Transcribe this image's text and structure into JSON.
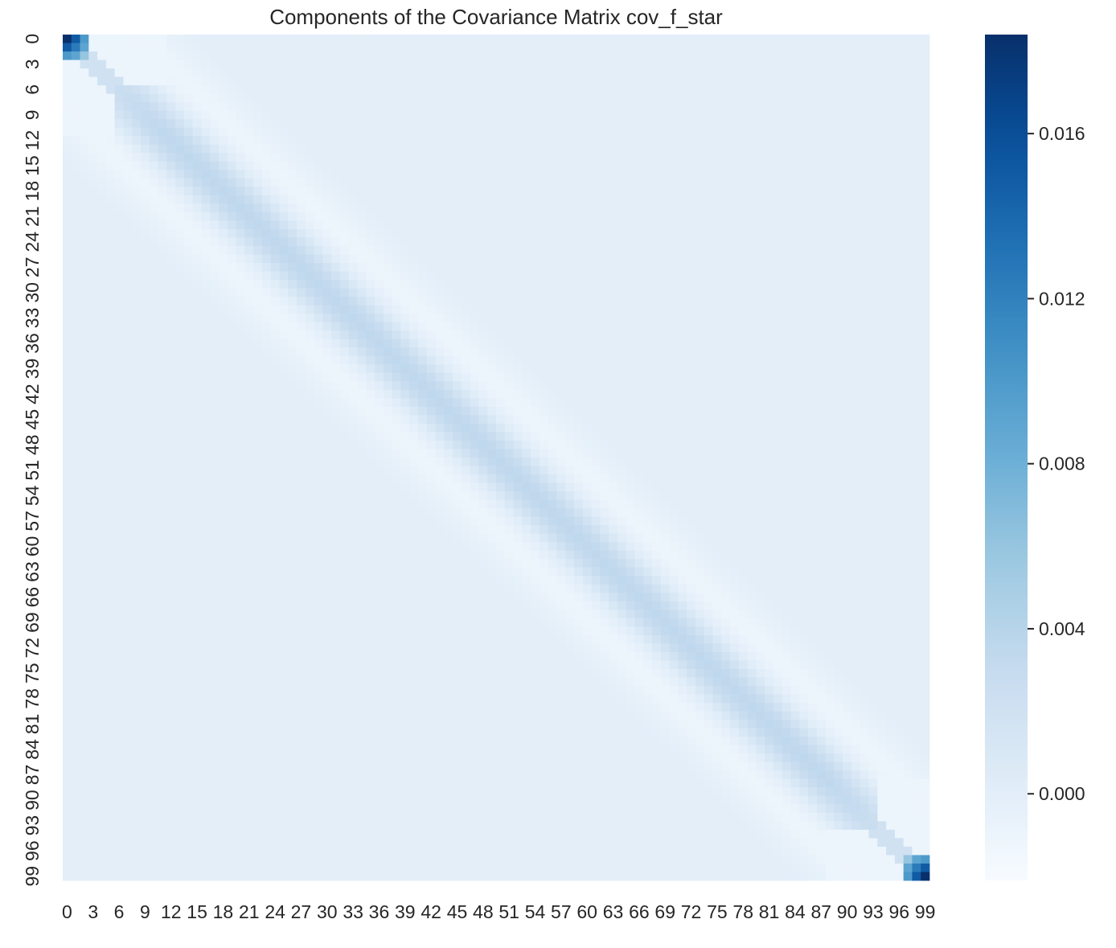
{
  "chart_data": {
    "type": "heatmap",
    "title": "Components of the Covariance Matrix cov_f_star",
    "xlabel": "",
    "ylabel": "",
    "n_rows": 100,
    "n_cols": 100,
    "x_tick_labels": [
      "0",
      "3",
      "6",
      "9",
      "12",
      "15",
      "18",
      "21",
      "24",
      "27",
      "30",
      "33",
      "36",
      "39",
      "42",
      "45",
      "48",
      "51",
      "54",
      "57",
      "60",
      "63",
      "66",
      "69",
      "72",
      "75",
      "78",
      "81",
      "84",
      "87",
      "90",
      "93",
      "96",
      "99"
    ],
    "y_tick_labels": [
      "0",
      "3",
      "6",
      "9",
      "12",
      "15",
      "18",
      "21",
      "24",
      "27",
      "30",
      "33",
      "36",
      "39",
      "42",
      "45",
      "48",
      "51",
      "54",
      "57",
      "60",
      "63",
      "66",
      "69",
      "72",
      "75",
      "78",
      "81",
      "84",
      "87",
      "90",
      "93",
      "96",
      "99"
    ],
    "colorbar": {
      "cmap": "Blues",
      "vmin": -0.0021,
      "vmax": 0.0184,
      "ticks": [
        0.016,
        0.012,
        0.008,
        0.004,
        0.0
      ],
      "tick_labels": [
        "0.016",
        "0.012",
        "0.008",
        "0.004",
        "0.000"
      ]
    },
    "structure": {
      "background_value": 0.0,
      "diagonal_band_peak": 0.0035,
      "diagonal_band_width": 3.0,
      "side_dip_value": -0.0011,
      "side_dip_offset": 8,
      "corner_blocks": [
        {
          "rows": [
            0,
            2
          ],
          "cols": [
            0,
            2
          ],
          "values": [
            [
              0.0184,
              0.015,
              0.01
            ],
            [
              0.015,
              0.0125,
              0.009
            ],
            [
              0.01,
              0.009,
              0.006
            ]
          ]
        },
        {
          "rows": [
            97,
            99
          ],
          "cols": [
            97,
            99
          ],
          "values": [
            [
              0.006,
              0.009,
              0.01
            ],
            [
              0.009,
              0.0125,
              0.015
            ],
            [
              0.01,
              0.015,
              0.0184
            ]
          ]
        }
      ]
    },
    "grid": false,
    "legend": "colorbar-right"
  }
}
